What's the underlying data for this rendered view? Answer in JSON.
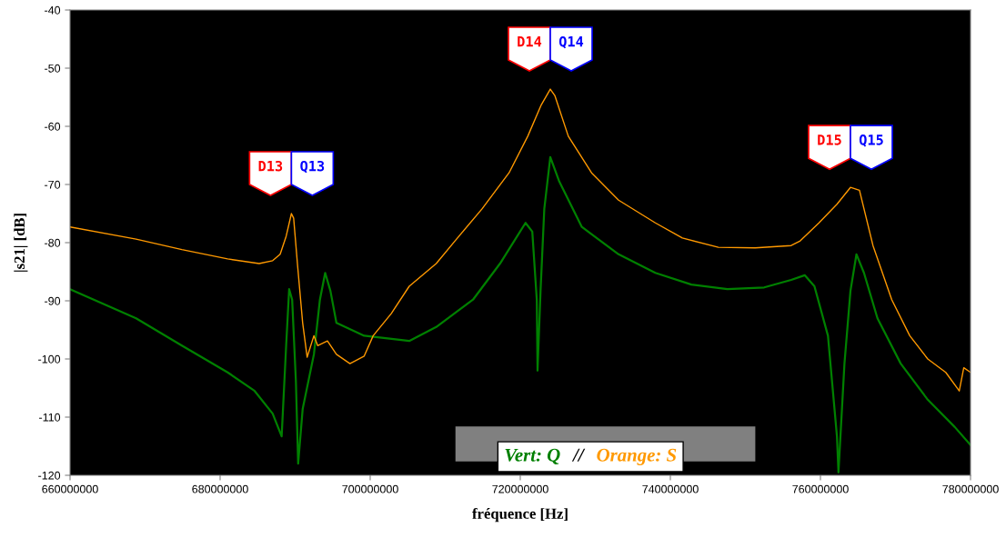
{
  "chart_data": {
    "type": "line",
    "xlabel": "fréquence [Hz]",
    "ylabel": "|s21| [dB]",
    "xlim": [
      660000000,
      780000000
    ],
    "xticks": [
      660000000,
      680000000,
      700000000,
      720000000,
      740000000,
      760000000,
      780000000
    ],
    "ylim": [
      -120,
      -40
    ],
    "yticks": [
      -120,
      -110,
      -100,
      -90,
      -80,
      -70,
      -60,
      -50,
      -40
    ],
    "grid": false,
    "series": [
      {
        "color": "#008000",
        "x": [
          660000000,
          668800000,
          674900000,
          681000000,
          684600000,
          687000000,
          688200000,
          688800000,
          689200000,
          689600000,
          690100000,
          690400000,
          691000000,
          692500000,
          693300000,
          694000000,
          694700000,
          695500000,
          699200000,
          705200000,
          708800000,
          713700000,
          717300000,
          720700000,
          721600000,
          722200000,
          722300000,
          722700000,
          723200000,
          724000000,
          725200000,
          728200000,
          733100000,
          738000000,
          742800000,
          747600000,
          752500000,
          756100000,
          757900000,
          759200000,
          761000000,
          762200000,
          762400000,
          763200000,
          764000000,
          764800000,
          765800000,
          767600000,
          770700000,
          774300000,
          777900000,
          780000000
        ],
        "values": [
          -88,
          -93,
          -97.7,
          -102.3,
          -105.5,
          -109.4,
          -113.3,
          -97.7,
          -88,
          -89.8,
          -103.9,
          -118,
          -108.6,
          -99.2,
          -89.8,
          -85.2,
          -88.3,
          -93.8,
          -96,
          -96.9,
          -94.5,
          -89.8,
          -83.6,
          -76.6,
          -78.1,
          -89.8,
          -102,
          -88.3,
          -74.2,
          -65.3,
          -69.5,
          -77.3,
          -82,
          -85.2,
          -87.2,
          -88,
          -87.7,
          -86.4,
          -85.6,
          -87.5,
          -96,
          -113.3,
          -119.5,
          -100.8,
          -88.3,
          -82,
          -85.2,
          -93,
          -100.8,
          -107,
          -111.7,
          -114.8
        ]
      },
      {
        "color": "#ff9900",
        "x": [
          660000000,
          668800000,
          674900000,
          681000000,
          685200000,
          687000000,
          688000000,
          688800000,
          689500000,
          689800000,
          690300000,
          691000000,
          691600000,
          692500000,
          693000000,
          694300000,
          695500000,
          697300000,
          699200000,
          700400000,
          702800000,
          705200000,
          708800000,
          711300000,
          714900000,
          718500000,
          721000000,
          722800000,
          724000000,
          724600000,
          726400000,
          729500000,
          733100000,
          738000000,
          741600000,
          746400000,
          751300000,
          756100000,
          757300000,
          759800000,
          762200000,
          764000000,
          765200000,
          767000000,
          769500000,
          771900000,
          774300000,
          776700000,
          778500000,
          779100000,
          780000000
        ],
        "values": [
          -77.3,
          -79.4,
          -81.2,
          -82.8,
          -83.6,
          -83.1,
          -82,
          -78.9,
          -75,
          -75.8,
          -83.6,
          -93.8,
          -99.7,
          -96,
          -97.7,
          -96.9,
          -99.2,
          -100.8,
          -99.5,
          -96,
          -92.2,
          -87.5,
          -83.6,
          -79.7,
          -74.2,
          -68,
          -61.7,
          -56.3,
          -53.6,
          -54.7,
          -61.7,
          -68,
          -72.7,
          -76.6,
          -79.2,
          -80.8,
          -80.9,
          -80.5,
          -79.7,
          -76.6,
          -73.4,
          -70.5,
          -71,
          -80.5,
          -89.8,
          -96,
          -100,
          -102.3,
          -105.5,
          -101.5,
          -102.3
        ]
      }
    ],
    "annotations": [
      "D13",
      "Q13",
      "D14",
      "Q14",
      "D15",
      "Q15",
      "Vert: Q",
      "//",
      "Orange: S"
    ]
  }
}
